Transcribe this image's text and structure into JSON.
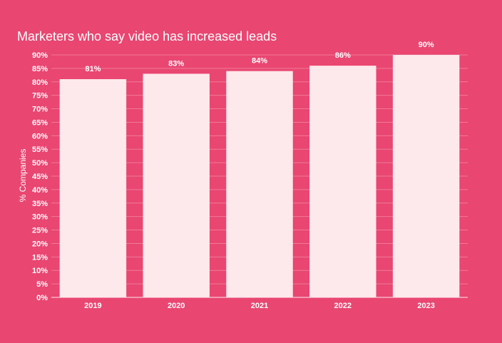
{
  "colors": {
    "background": "#e94671",
    "bar": "#fde8ec",
    "text": "#ffffff",
    "grid": "#f07a98"
  },
  "chart_data": {
    "type": "bar",
    "title": "Marketers who say video has increased leads",
    "ylabel": "% Companies",
    "xlabel": "",
    "categories": [
      "2019",
      "2020",
      "2021",
      "2022",
      "2023"
    ],
    "values": [
      81,
      83,
      84,
      86,
      90
    ],
    "data_labels": [
      "81%",
      "83%",
      "84%",
      "86%",
      "90%"
    ],
    "ylim": [
      0,
      90
    ],
    "yticks": [
      0,
      5,
      10,
      15,
      20,
      25,
      30,
      35,
      40,
      45,
      50,
      55,
      60,
      65,
      70,
      75,
      80,
      85,
      90
    ],
    "ytick_labels": [
      "0%",
      "5%",
      "10%",
      "15%",
      "20%",
      "25%",
      "30%",
      "35%",
      "40%",
      "45%",
      "50%",
      "55%",
      "60%",
      "65%",
      "70%",
      "75%",
      "80%",
      "85%",
      "90%"
    ],
    "grid": true,
    "legend": "none"
  }
}
